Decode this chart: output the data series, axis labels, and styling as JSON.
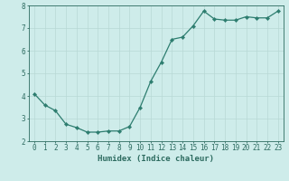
{
  "x": [
    0,
    1,
    2,
    3,
    4,
    5,
    6,
    7,
    8,
    9,
    10,
    11,
    12,
    13,
    14,
    15,
    16,
    17,
    18,
    19,
    20,
    21,
    22,
    23
  ],
  "y": [
    4.1,
    3.6,
    3.35,
    2.75,
    2.6,
    2.4,
    2.4,
    2.45,
    2.45,
    2.65,
    3.5,
    4.65,
    5.5,
    6.5,
    6.6,
    7.1,
    7.75,
    7.4,
    7.35,
    7.35,
    7.5,
    7.45,
    7.45,
    7.75
  ],
  "line_color": "#2d7d6f",
  "marker": "D",
  "marker_size": 2.2,
  "background_color": "#ceecea",
  "grid_color": "#b8d8d5",
  "xlabel": "Humidex (Indice chaleur)",
  "ylim": [
    2,
    8
  ],
  "xlim": [
    -0.5,
    23.5
  ],
  "yticks": [
    2,
    3,
    4,
    5,
    6,
    7,
    8
  ],
  "xticks": [
    0,
    1,
    2,
    3,
    4,
    5,
    6,
    7,
    8,
    9,
    10,
    11,
    12,
    13,
    14,
    15,
    16,
    17,
    18,
    19,
    20,
    21,
    22,
    23
  ],
  "tick_color": "#2d6b60",
  "label_fontsize": 6.5,
  "tick_fontsize": 5.5,
  "linewidth": 0.9
}
